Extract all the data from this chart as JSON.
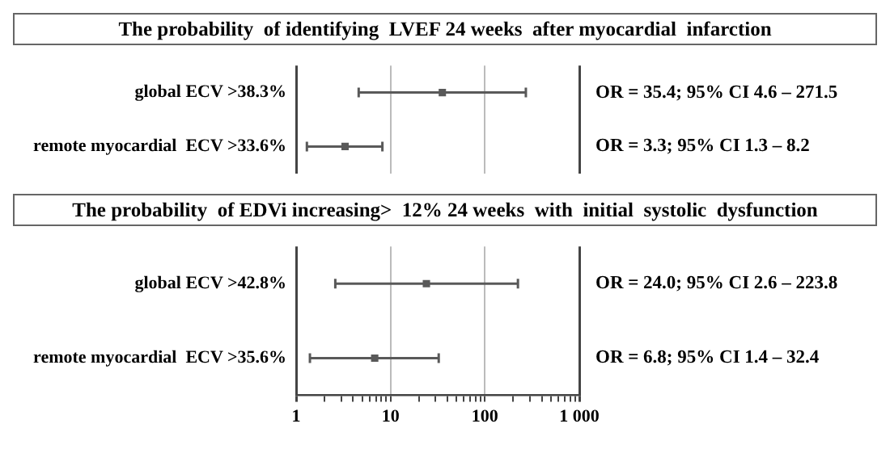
{
  "chart_data": [
    {
      "type": "scatter",
      "orientation": "horizontal",
      "title": "The probability  of identifying  LVEF 24 weeks  after myocardial  infarction",
      "categories": [
        "global ECV >38.3%",
        "remote myocardial  ECV >33.6%"
      ],
      "values": [
        35.4,
        3.3
      ],
      "errors": [
        [
          4.6,
          271.5
        ],
        [
          1.3,
          8.2
        ]
      ],
      "annotations": [
        "OR = 35.4; 95% CI 4.6 – 271.5",
        "OR = 3.3; 95% CI 1.3 – 8.2"
      ],
      "color": "#595959",
      "marker": "square",
      "log": "x",
      "xlim": [
        1,
        1000
      ],
      "xticks": [
        1,
        10,
        100,
        1000
      ],
      "grid": "x",
      "tick_labels": "y"
    },
    {
      "type": "scatter",
      "orientation": "horizontal",
      "title": "The probability  of EDVi increasing>  12% 24 weeks  with  initial  systolic  dysfunction",
      "categories": [
        "global ECV >42.8%",
        "remote myocardial  ECV >35.6%"
      ],
      "values": [
        24.0,
        6.8
      ],
      "errors": [
        [
          2.6,
          223.8
        ],
        [
          1.4,
          32.4
        ]
      ],
      "annotations": [
        "OR = 24.0; 95% CI 2.6 – 223.8",
        "OR = 6.8; 95% CI 1.4 – 32.4"
      ],
      "color": "#595959",
      "marker": "square",
      "log": "x",
      "xlim": [
        1,
        1000
      ],
      "xticks": [
        1,
        {
          "value": 2,
          "label": null
        },
        {
          "value": 3,
          "label": null
        },
        {
          "value": 4,
          "label": null
        },
        {
          "value": 5,
          "label": null
        },
        {
          "value": 6,
          "label": null
        },
        {
          "value": 7,
          "label": null
        },
        {
          "value": 8,
          "label": null
        },
        {
          "value": 9,
          "label": null
        },
        10,
        {
          "value": 20,
          "label": null
        },
        {
          "value": 30,
          "label": null
        },
        {
          "value": 40,
          "label": null
        },
        {
          "value": 50,
          "label": null
        },
        {
          "value": 60,
          "label": null
        },
        {
          "value": 70,
          "label": null
        },
        {
          "value": 80,
          "label": null
        },
        {
          "value": 90,
          "label": null
        },
        100,
        {
          "value": 200,
          "label": null
        },
        {
          "value": 300,
          "label": null
        },
        {
          "value": 400,
          "label": null
        },
        {
          "value": 500,
          "label": null
        },
        {
          "value": 600,
          "label": null
        },
        {
          "value": 700,
          "label": null
        },
        {
          "value": 800,
          "label": null
        },
        {
          "value": 900,
          "label": null
        },
        {
          "value": 1000,
          "label": "1 000"
        }
      ],
      "grid": "x"
    }
  ]
}
